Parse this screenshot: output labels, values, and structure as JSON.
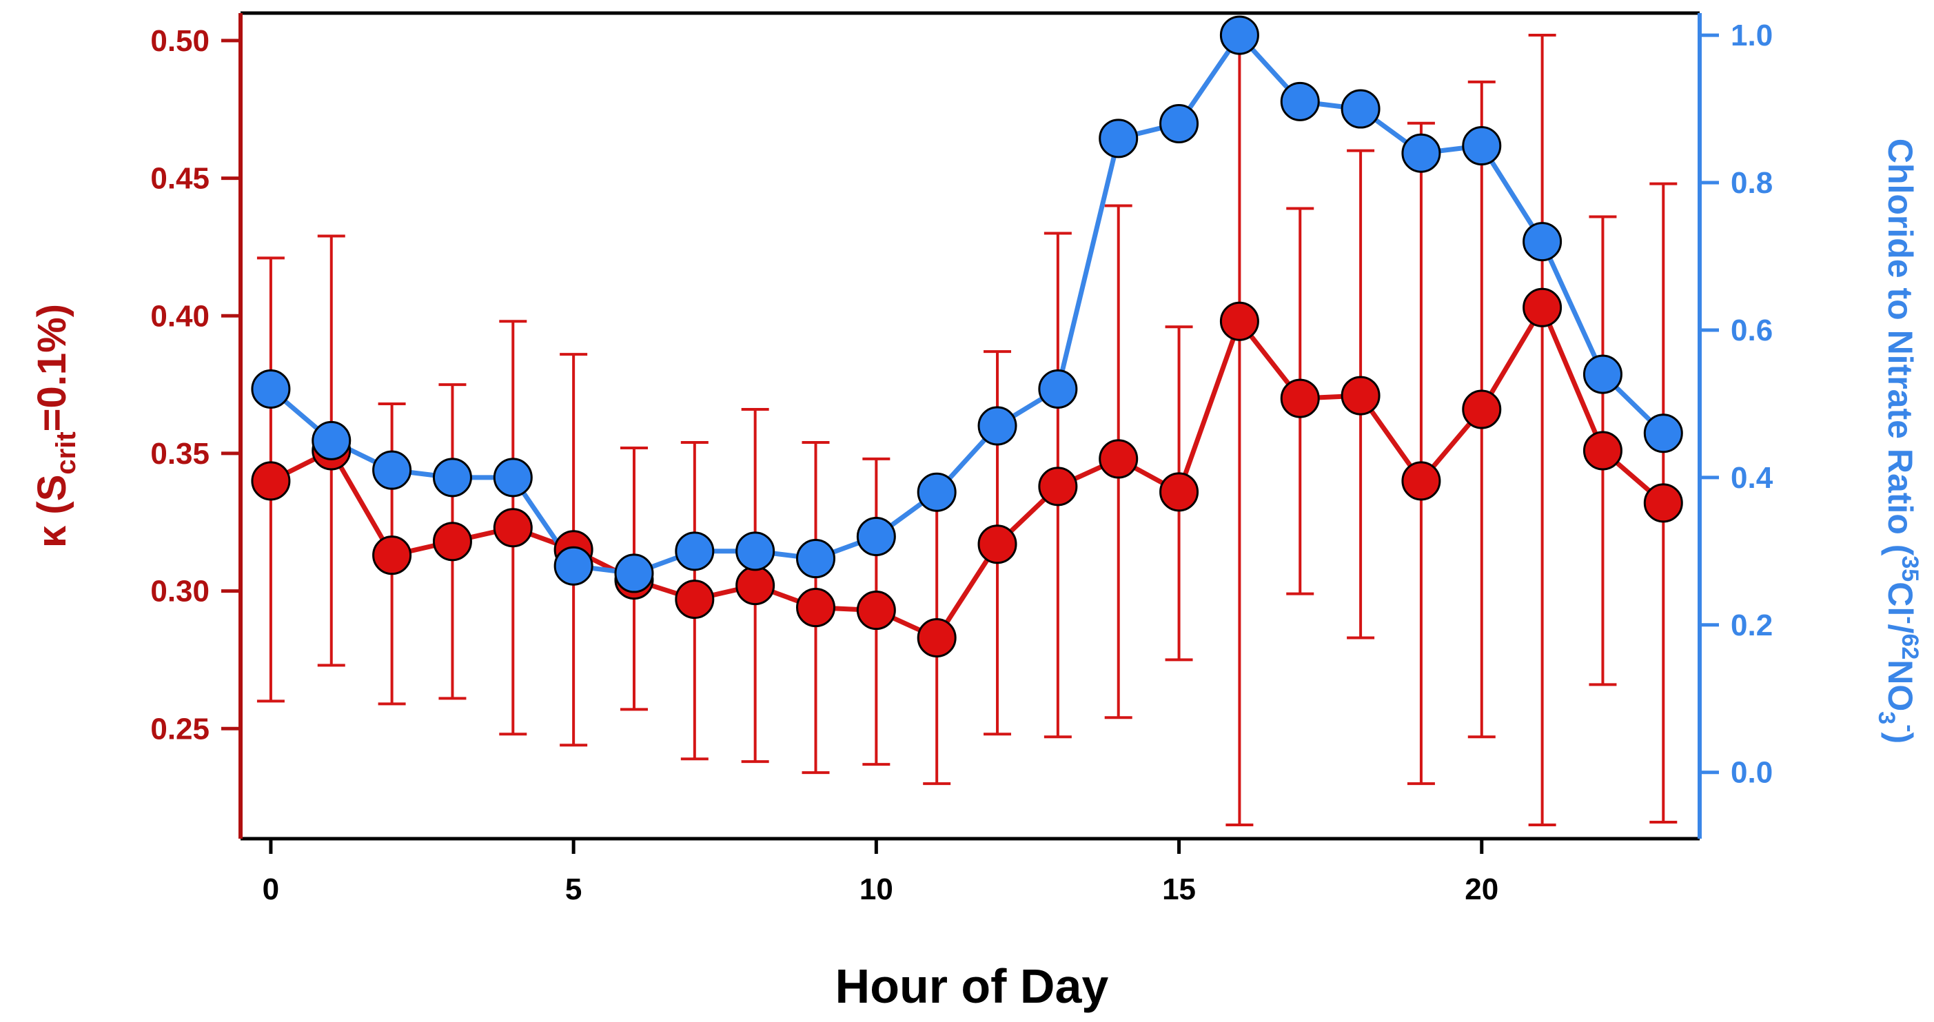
{
  "chart_data": {
    "type": "line",
    "xlabel": "Hour of Day",
    "ylabel_left": {
      "kappa": "κ",
      "open": "(S",
      "sub": "crit",
      "rest": "=0.1%)"
    },
    "ylabel_right": {
      "main": "Chloride to Nitrate Ratio (",
      "sup1": "35",
      "cl": "Cl",
      "minus1": "-",
      "slash": "/",
      "sup2": "62",
      "no": "NO",
      "sub3": "3",
      "minus2": "-",
      "close": ")"
    },
    "xlim": [
      -0.5,
      23.6
    ],
    "ylim_left": [
      0.21,
      0.51
    ],
    "ylim_right": [
      -0.09,
      1.03
    ],
    "x_ticks": [
      0,
      5,
      10,
      15,
      20
    ],
    "x_tick_labels": [
      "0",
      "5",
      "10",
      "15",
      "20"
    ],
    "y_left_ticks": [
      0.25,
      0.3,
      0.35,
      0.4,
      0.45,
      0.5
    ],
    "y_left_tick_labels": [
      "0.25",
      "0.30",
      "0.35",
      "0.40",
      "0.45",
      "0.50"
    ],
    "y_right_ticks": [
      0.0,
      0.2,
      0.4,
      0.6,
      0.8,
      1.0
    ],
    "y_right_tick_labels": [
      "0.0",
      "0.2",
      "0.4",
      "0.6",
      "0.8",
      "1.0"
    ],
    "x": [
      0,
      1,
      2,
      3,
      4,
      5,
      6,
      7,
      8,
      9,
      10,
      11,
      12,
      13,
      14,
      15,
      16,
      17,
      18,
      19,
      20,
      21,
      22,
      23
    ],
    "series": [
      {
        "name": "kappa",
        "axis": "left",
        "color": "#dd1010",
        "line_color": "#d41515",
        "values": [
          0.34,
          0.351,
          0.313,
          0.318,
          0.323,
          0.315,
          0.304,
          0.297,
          0.302,
          0.294,
          0.293,
          0.283,
          0.317,
          0.338,
          0.348,
          0.336,
          0.398,
          0.37,
          0.371,
          0.34,
          0.366,
          0.403,
          0.351,
          0.332
        ],
        "err_high": [
          0.421,
          0.429,
          0.368,
          0.375,
          0.398,
          0.386,
          0.352,
          0.354,
          0.366,
          0.354,
          0.348,
          0.335,
          0.387,
          0.43,
          0.44,
          0.396,
          0.5,
          0.439,
          0.46,
          0.47,
          0.485,
          0.502,
          0.436,
          0.448
        ],
        "err_low": [
          0.26,
          0.273,
          0.259,
          0.261,
          0.248,
          0.244,
          0.257,
          0.239,
          0.238,
          0.234,
          0.237,
          0.23,
          0.248,
          0.247,
          0.254,
          0.275,
          0.215,
          0.299,
          0.283,
          0.23,
          0.247,
          0.215,
          0.266,
          0.216
        ]
      },
      {
        "name": "chloride-to-nitrate",
        "axis": "right",
        "color": "#2f82ef",
        "line_color": "#3a86e8",
        "values": [
          0.52,
          0.45,
          0.41,
          0.4,
          0.4,
          0.28,
          0.27,
          0.3,
          0.3,
          0.29,
          0.32,
          0.38,
          0.47,
          0.52,
          0.86,
          0.88,
          1.0,
          0.91,
          0.9,
          0.84,
          0.85,
          0.72,
          0.54,
          0.46
        ]
      }
    ]
  }
}
